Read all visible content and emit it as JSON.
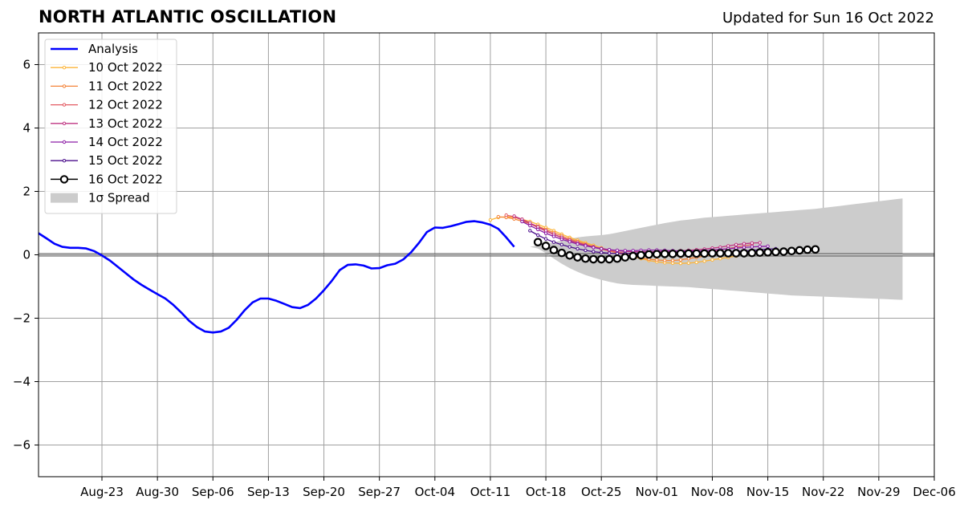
{
  "header": {
    "title": "NORTH ATLANTIC OSCILLATION",
    "updated": "Updated for Sun 16 Oct 2022"
  },
  "chart_data": {
    "type": "line",
    "title": "NORTH ATLANTIC OSCILLATION",
    "subtitle": "Updated for Sun 16 Oct 2022",
    "xlabel": "",
    "ylabel": "",
    "x_start": "2022-08-15",
    "xlim": [
      "2022-08-15",
      "2022-12-06"
    ],
    "ylim": [
      -7,
      7
    ],
    "grid": true,
    "legend_position": "top-left",
    "x_ticks": [
      {
        "date": "2022-08-23",
        "label": "Aug-23"
      },
      {
        "date": "2022-08-30",
        "label": "Aug-30"
      },
      {
        "date": "2022-09-06",
        "label": "Sep-06"
      },
      {
        "date": "2022-09-13",
        "label": "Sep-13"
      },
      {
        "date": "2022-09-20",
        "label": "Sep-20"
      },
      {
        "date": "2022-09-27",
        "label": "Sep-27"
      },
      {
        "date": "2022-10-04",
        "label": "Oct-04"
      },
      {
        "date": "2022-10-11",
        "label": "Oct-11"
      },
      {
        "date": "2022-10-18",
        "label": "Oct-18"
      },
      {
        "date": "2022-10-25",
        "label": "Oct-25"
      },
      {
        "date": "2022-11-01",
        "label": "Nov-01"
      },
      {
        "date": "2022-11-08",
        "label": "Nov-08"
      },
      {
        "date": "2022-11-15",
        "label": "Nov-15"
      },
      {
        "date": "2022-11-22",
        "label": "Nov-22"
      },
      {
        "date": "2022-11-29",
        "label": "Nov-29"
      },
      {
        "date": "2022-12-06",
        "label": "Dec-06"
      }
    ],
    "y_ticks": [
      {
        "value": 6,
        "label": "6"
      },
      {
        "value": 4,
        "label": "4"
      },
      {
        "value": 2,
        "label": "2"
      },
      {
        "value": 0,
        "label": "0"
      },
      {
        "value": -2,
        "label": "−2"
      },
      {
        "value": -4,
        "label": "−4"
      },
      {
        "value": -6,
        "label": "−6"
      }
    ],
    "analysis": {
      "name": "Analysis",
      "color": "#0000ff",
      "start_date": "2022-08-15",
      "values": [
        0.68,
        0.52,
        0.35,
        0.25,
        0.22,
        0.22,
        0.2,
        0.12,
        -0.02,
        -0.18,
        -0.38,
        -0.58,
        -0.78,
        -0.95,
        -1.1,
        -1.24,
        -1.38,
        -1.58,
        -1.82,
        -2.08,
        -2.28,
        -2.42,
        -2.45,
        -2.42,
        -2.3,
        -2.05,
        -1.75,
        -1.5,
        -1.38,
        -1.38,
        -1.45,
        -1.55,
        -1.65,
        -1.68,
        -1.58,
        -1.38,
        -1.12,
        -0.82,
        -0.48,
        -0.32,
        -0.3,
        -0.34,
        -0.43,
        -0.42,
        -0.33,
        -0.28,
        -0.15,
        0.08,
        0.38,
        0.72,
        0.86,
        0.85,
        0.9,
        0.97,
        1.04,
        1.06,
        1.02,
        0.95,
        0.82,
        0.55,
        0.25
      ]
    },
    "forecasts": [
      {
        "name": "10 Oct 2022",
        "color": "#fcb539",
        "start_date": "2022-10-11",
        "values": [
          1.1,
          1.18,
          1.2,
          1.18,
          1.12,
          1.05,
          0.96,
          0.86,
          0.76,
          0.65,
          0.55,
          0.46,
          0.38,
          0.3,
          0.22,
          0.14,
          0.08,
          0.02,
          -0.06,
          -0.12,
          -0.18,
          -0.22,
          -0.25,
          -0.26,
          -0.27,
          -0.26,
          -0.24,
          -0.2,
          -0.16,
          -0.12,
          -0.08,
          -0.04
        ]
      },
      {
        "name": "11 Oct 2022",
        "color": "#f4843a",
        "start_date": "2022-10-12",
        "values": [
          1.2,
          1.18,
          1.13,
          1.06,
          0.98,
          0.9,
          0.8,
          0.7,
          0.6,
          0.5,
          0.42,
          0.34,
          0.26,
          0.18,
          0.12,
          0.06,
          0.0,
          -0.05,
          -0.1,
          -0.14,
          -0.16,
          -0.18,
          -0.18,
          -0.16,
          -0.12,
          -0.08,
          -0.04,
          0.0,
          0.03,
          0.05
        ]
      },
      {
        "name": "12 Oct 2022",
        "color": "#e35a62",
        "start_date": "2022-10-13",
        "values": [
          1.25,
          1.2,
          1.1,
          0.98,
          0.86,
          0.75,
          0.64,
          0.54,
          0.45,
          0.37,
          0.3,
          0.24,
          0.18,
          0.13,
          0.08,
          0.05,
          0.02,
          0.0,
          -0.01,
          -0.02,
          -0.02,
          -0.01,
          0.0,
          0.02,
          0.05,
          0.08,
          0.12,
          0.16,
          0.2,
          0.24,
          0.28,
          0.32
        ]
      },
      {
        "name": "13 Oct 2022",
        "color": "#bf3582",
        "start_date": "2022-10-14",
        "values": [
          1.22,
          1.12,
          1.0,
          0.88,
          0.76,
          0.65,
          0.55,
          0.46,
          0.38,
          0.31,
          0.25,
          0.2,
          0.16,
          0.13,
          0.11,
          0.1,
          0.1,
          0.1,
          0.1,
          0.11,
          0.12,
          0.13,
          0.14,
          0.16,
          0.18,
          0.21,
          0.24,
          0.28,
          0.32,
          0.35,
          0.37,
          0.38
        ]
      },
      {
        "name": "14 Oct 2022",
        "color": "#8c1ea6",
        "start_date": "2022-10-15",
        "values": [
          1.05,
          0.92,
          0.8,
          0.68,
          0.58,
          0.49,
          0.41,
          0.34,
          0.28,
          0.23,
          0.19,
          0.16,
          0.14,
          0.13,
          0.13,
          0.14,
          0.15,
          0.15,
          0.14,
          0.13,
          0.12,
          0.12,
          0.12,
          0.13,
          0.15,
          0.17,
          0.19,
          0.21,
          0.23,
          0.25,
          0.26,
          0.27
        ]
      },
      {
        "name": "15 Oct 2022",
        "color": "#4b0f8c",
        "start_date": "2022-10-16",
        "values": [
          0.76,
          0.62,
          0.5,
          0.4,
          0.32,
          0.25,
          0.19,
          0.14,
          0.1,
          0.07,
          0.05,
          0.04,
          0.04,
          0.05,
          0.06,
          0.07,
          0.08,
          0.08,
          0.08,
          0.08,
          0.08,
          0.08,
          0.08,
          0.08,
          0.09,
          0.1,
          0.11,
          0.12,
          0.14,
          0.16,
          0.18,
          0.19
        ]
      },
      {
        "name": "16 Oct 2022",
        "color": "#000000",
        "marker": "open-circle",
        "start_date": "2022-10-17",
        "values": [
          0.4,
          0.28,
          0.15,
          0.06,
          -0.02,
          -0.08,
          -0.12,
          -0.14,
          -0.14,
          -0.14,
          -0.12,
          -0.08,
          -0.04,
          -0.01,
          0.01,
          0.02,
          0.03,
          0.03,
          0.04,
          0.04,
          0.04,
          0.04,
          0.05,
          0.05,
          0.05,
          0.05,
          0.05,
          0.06,
          0.07,
          0.08,
          0.09,
          0.1,
          0.12,
          0.14,
          0.16,
          0.17
        ]
      }
    ],
    "spread": {
      "name": "1σ Spread",
      "color": "#cccccc",
      "start_date": "2022-10-16",
      "upper": [
        0.25,
        0.3,
        0.35,
        0.4,
        0.45,
        0.5,
        0.55,
        0.58,
        0.6,
        0.62,
        0.65,
        0.7,
        0.75,
        0.8,
        0.85,
        0.9,
        0.95,
        1.0,
        1.04,
        1.08,
        1.11,
        1.14,
        1.17,
        1.19,
        1.21,
        1.23,
        1.25,
        1.27,
        1.29,
        1.31,
        1.33,
        1.35,
        1.37,
        1.39,
        1.41,
        1.43,
        1.45,
        1.48,
        1.51,
        1.54,
        1.57,
        1.6,
        1.63,
        1.66,
        1.69,
        1.72,
        1.75,
        1.78
      ],
      "lower": [
        0.25,
        0.2,
        0.05,
        -0.12,
        -0.28,
        -0.42,
        -0.54,
        -0.64,
        -0.72,
        -0.79,
        -0.85,
        -0.9,
        -0.93,
        -0.95,
        -0.96,
        -0.97,
        -0.98,
        -0.99,
        -1.0,
        -1.01,
        -1.02,
        -1.04,
        -1.06,
        -1.08,
        -1.1,
        -1.12,
        -1.14,
        -1.16,
        -1.18,
        -1.2,
        -1.22,
        -1.24,
        -1.26,
        -1.28,
        -1.29,
        -1.3,
        -1.31,
        -1.32,
        -1.33,
        -1.34,
        -1.35,
        -1.36,
        -1.37,
        -1.38,
        -1.39,
        -1.4,
        -1.41,
        -1.42
      ]
    },
    "legend": [
      {
        "label": "Analysis",
        "color": "#0000ff",
        "style": "thick-line"
      },
      {
        "label": "10 Oct 2022",
        "color": "#fcb539",
        "style": "line-dot"
      },
      {
        "label": "11 Oct 2022",
        "color": "#f4843a",
        "style": "line-dot"
      },
      {
        "label": "12 Oct 2022",
        "color": "#e35a62",
        "style": "line-dot"
      },
      {
        "label": "13 Oct 2022",
        "color": "#bf3582",
        "style": "line-dot"
      },
      {
        "label": "14 Oct 2022",
        "color": "#8c1ea6",
        "style": "line-dot"
      },
      {
        "label": "15 Oct 2022",
        "color": "#4b0f8c",
        "style": "line-dot"
      },
      {
        "label": "16 Oct 2022",
        "color": "#000000",
        "style": "line-circle"
      },
      {
        "label": "1σ Spread",
        "color": "#cccccc",
        "style": "patch"
      }
    ]
  }
}
